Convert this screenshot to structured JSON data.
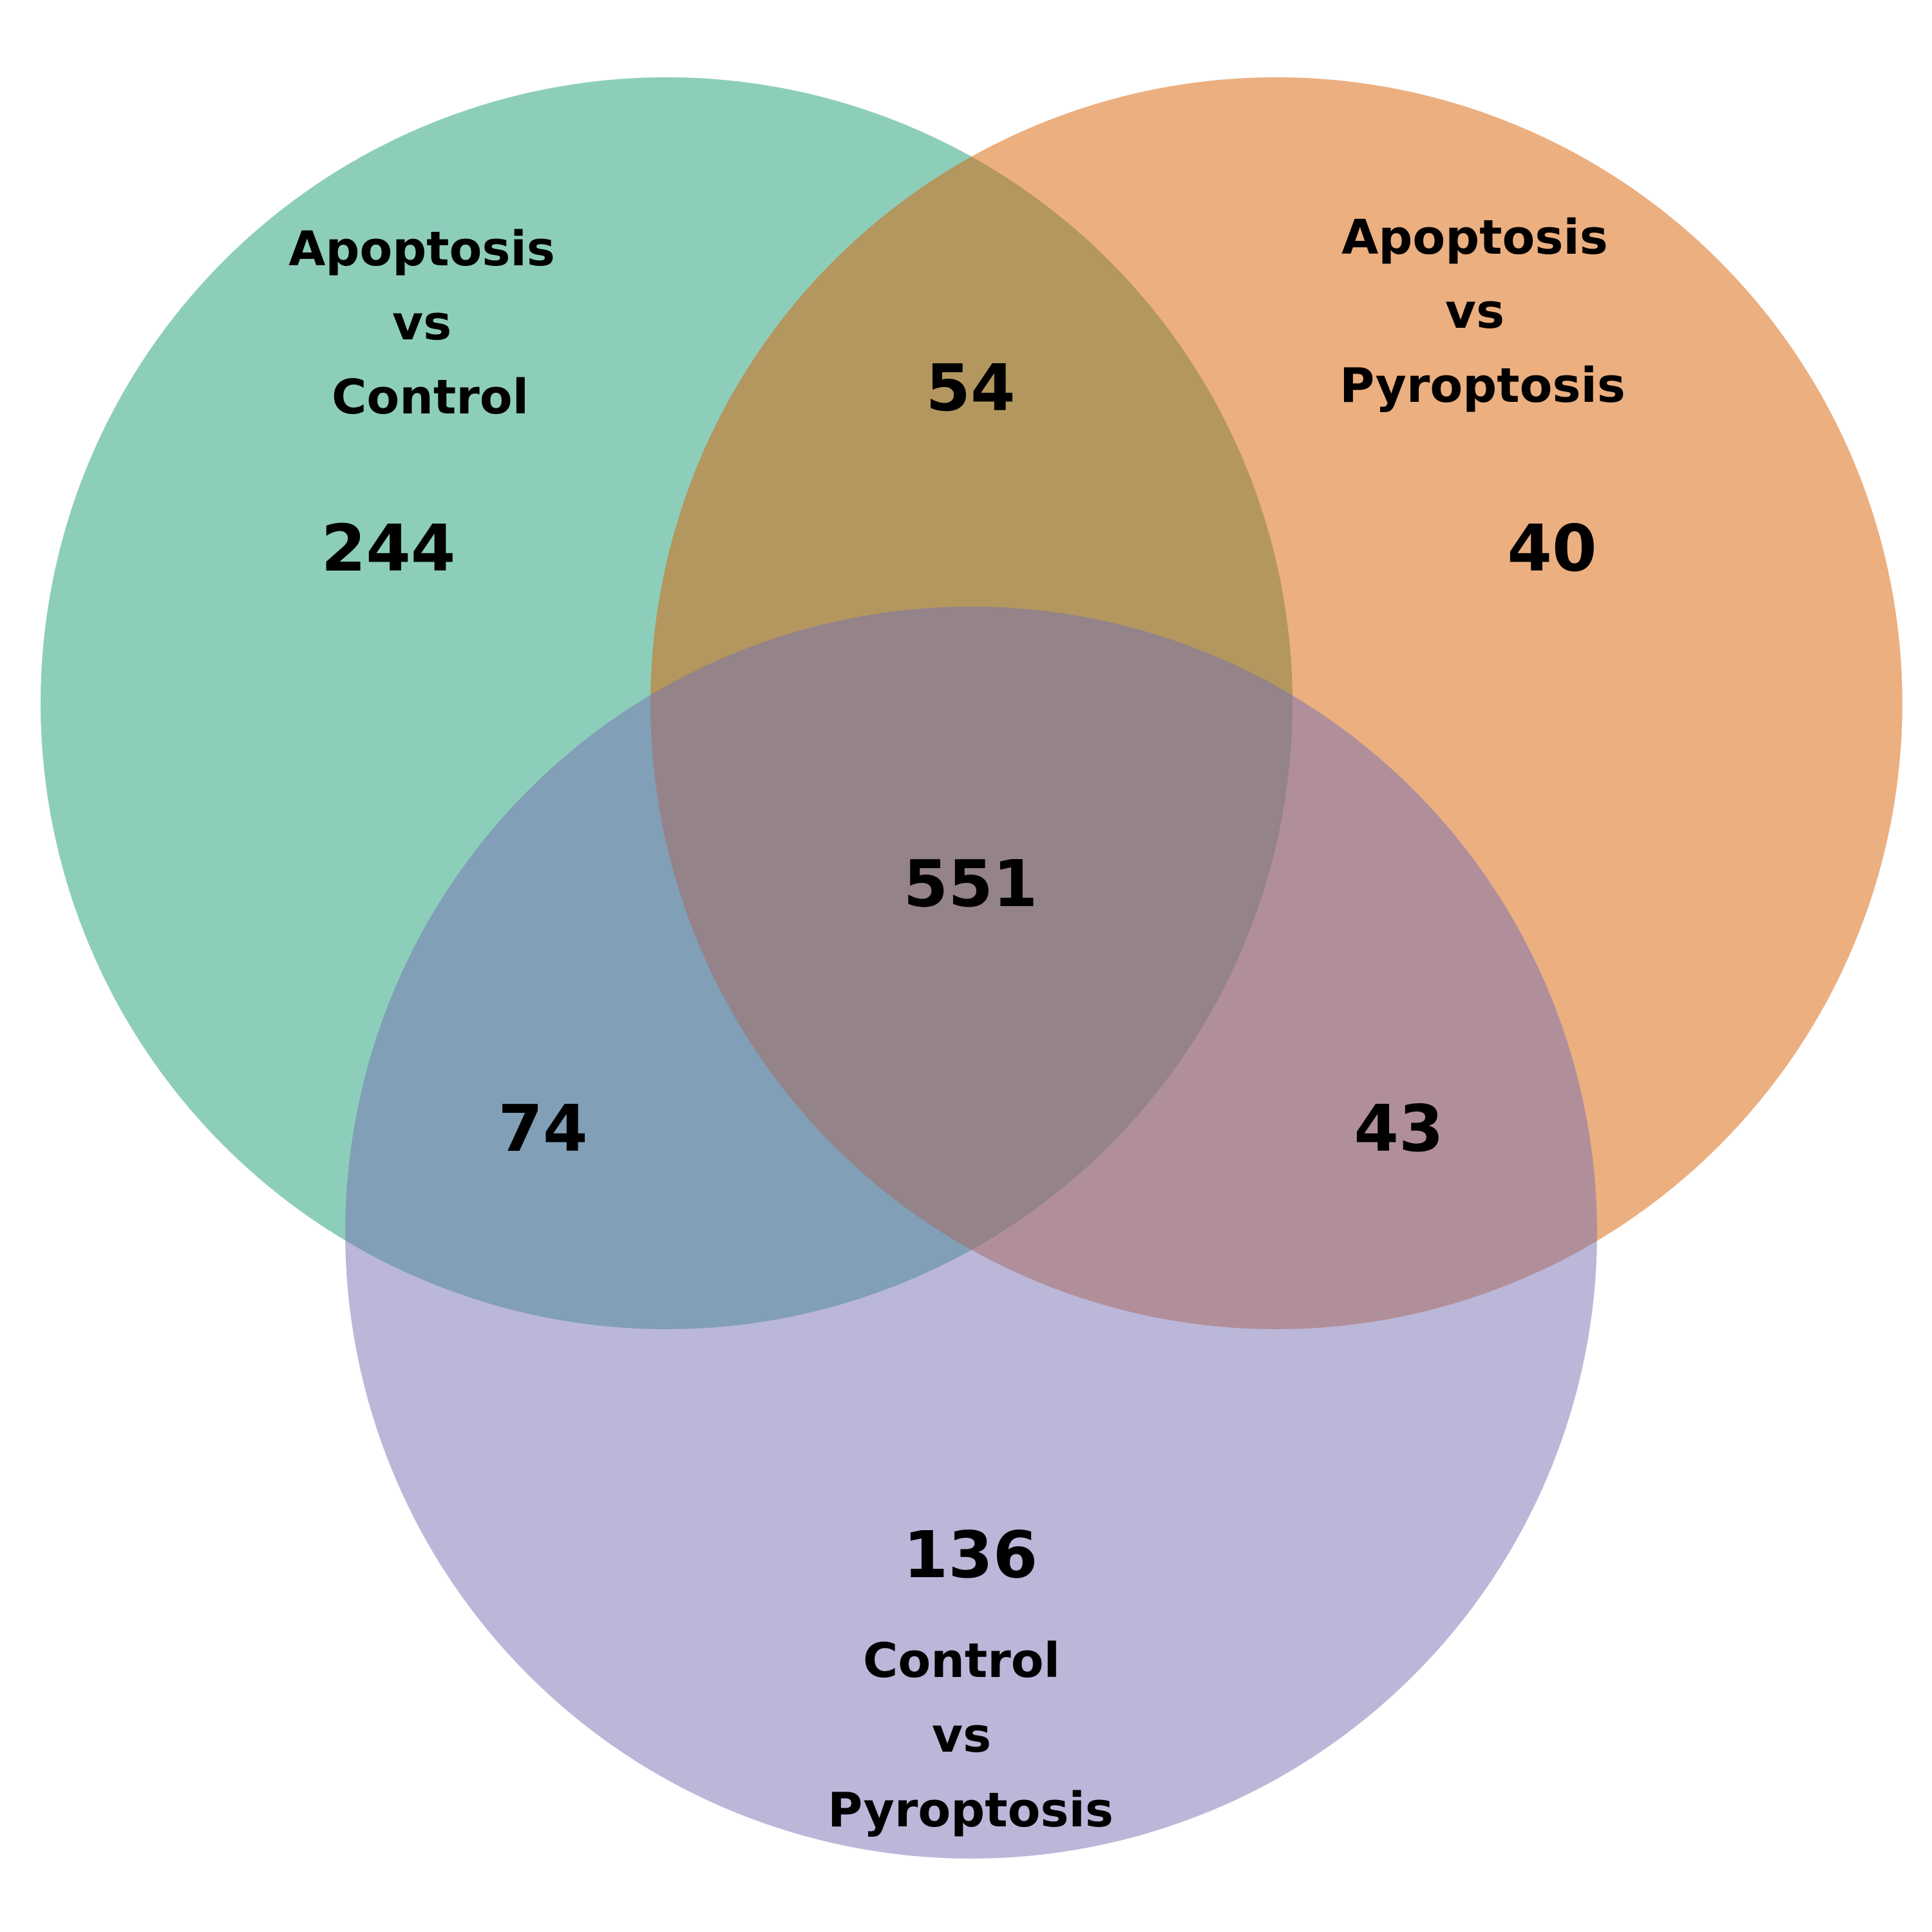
{
  "sets": [
    {
      "id": "a",
      "label_lines": [
        "Apoptosis",
        "vs",
        "Control"
      ],
      "color": "#1b9e77"
    },
    {
      "id": "b",
      "label_lines": [
        "Apoptosis",
        "vs",
        "Pyroptosis"
      ],
      "color": "#d95f02"
    },
    {
      "id": "c",
      "label_lines": [
        "Control",
        "vs",
        "Pyroptosis"
      ],
      "color": "#7570b3"
    }
  ],
  "fill_opacity": 0.5,
  "regions": {
    "a_only": "244",
    "b_only": "40",
    "c_only": "136",
    "ab_only": "54",
    "ac_only": "74",
    "bc_only": "43",
    "abc": "551"
  }
}
